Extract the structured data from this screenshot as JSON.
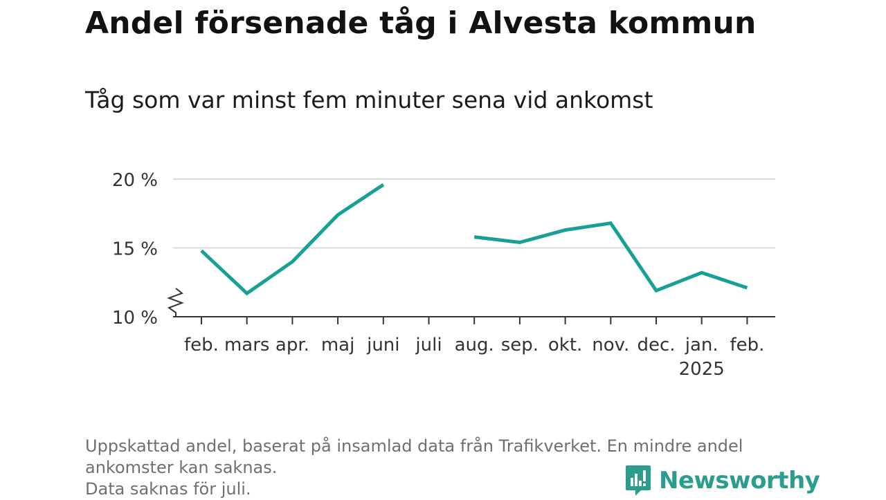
{
  "title": "Andel försenade tåg i Alvesta kommun",
  "subtitle": "Tåg som var minst fem minuter sena vid ankomst",
  "footnote": {
    "lines": [
      "Uppskattad andel, baserat på insamlad data från Trafikverket. En mindre andel",
      "ankomster kan saknas.",
      "Data saknas för juli."
    ]
  },
  "brand": {
    "name": "Newsworthy",
    "icon": "newsworthy-logo-icon",
    "color": "#2a9d8f"
  },
  "chart_data": {
    "type": "line",
    "title": "Andel försenade tåg i Alvesta kommun",
    "subtitle": "Tåg som var minst fem minuter sena vid ankomst",
    "categories": [
      "feb.",
      "mars",
      "apr.",
      "maj",
      "juni",
      "juli",
      "aug.",
      "sep.",
      "okt.",
      "nov.",
      "dec.",
      "jan.",
      "feb."
    ],
    "category_sublabels": [
      "",
      "",
      "",
      "",
      "",
      "",
      "",
      "",
      "",
      "",
      "",
      "2025",
      ""
    ],
    "series": [
      {
        "values": [
          14.8,
          11.7,
          14.0,
          17.4,
          19.6,
          null,
          15.8,
          15.4,
          16.3,
          16.8,
          11.9,
          13.2,
          12.1
        ],
        "color": "#18a096"
      }
    ],
    "y_ticks": [
      10,
      15,
      20
    ],
    "y_tick_labels": [
      "10 %",
      "15 %",
      "20 %"
    ],
    "ylim": [
      10,
      20
    ],
    "y_axis_break": true,
    "grid": true,
    "legend": "none"
  }
}
